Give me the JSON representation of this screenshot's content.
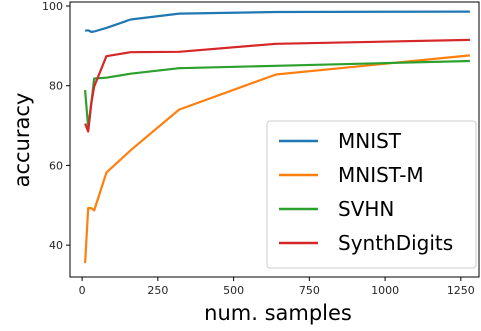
{
  "chart_data": {
    "type": "line",
    "title": "",
    "xlabel": "num. samples",
    "ylabel": "accuracy",
    "xlim": [
      -40,
      1310
    ],
    "ylim": [
      32,
      101
    ],
    "xticks": [
      0,
      250,
      500,
      750,
      1000,
      1250
    ],
    "yticks": [
      40,
      60,
      80,
      100
    ],
    "grid": false,
    "legend_position": "lower-right",
    "series": [
      {
        "name": "MNIST",
        "color": "#1f77b4",
        "x": [
          10,
          20,
          30,
          40,
          80,
          160,
          320,
          640,
          1280
        ],
        "y": [
          93.8,
          93.9,
          93.5,
          93.6,
          94.5,
          96.6,
          98.1,
          98.5,
          98.6
        ]
      },
      {
        "name": "MNIST-M",
        "color": "#ff7f0e",
        "x": [
          10,
          20,
          30,
          40,
          80,
          160,
          320,
          640,
          1280
        ],
        "y": [
          35.5,
          49.3,
          49.3,
          48.7,
          58.2,
          63.8,
          74.0,
          82.8,
          87.6
        ]
      },
      {
        "name": "SVHN",
        "color": "#2ca02c",
        "x": [
          10,
          20,
          30,
          40,
          80,
          160,
          320,
          640,
          1280
        ],
        "y": [
          78.9,
          69.4,
          75.4,
          81.8,
          82.0,
          83.0,
          84.4,
          85.0,
          86.2
        ]
      },
      {
        "name": "SynthDigits",
        "color": "#d62728",
        "x": [
          10,
          20,
          30,
          40,
          80,
          160,
          320,
          640,
          1280
        ],
        "y": [
          70.5,
          68.5,
          75.4,
          79.8,
          87.4,
          88.4,
          88.5,
          90.5,
          91.5
        ]
      }
    ]
  }
}
